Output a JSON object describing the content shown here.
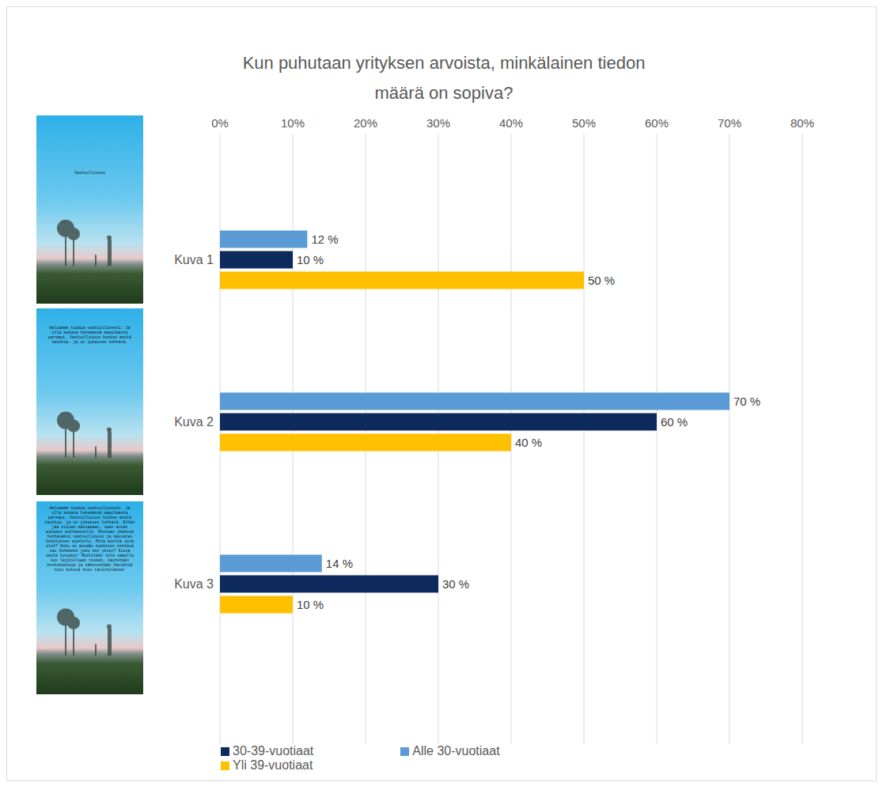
{
  "chart_data": {
    "type": "bar",
    "orientation": "horizontal",
    "title": "Kun puhutaan yrityksen arvoista, minkälainen tiedon määrä on sopiva?",
    "categories": [
      "Kuva 1",
      "Kuva 2",
      "Kuva 3"
    ],
    "series": [
      {
        "name": "Alle 30-vuotiaat",
        "color": "#5b9bd5",
        "values": [
          12,
          70,
          14
        ],
        "value_labels": [
          "12 %",
          "70 %",
          "14 %"
        ]
      },
      {
        "name": "30-39-vuotiaat",
        "color": "#0e2a5c",
        "values": [
          10,
          60,
          30
        ],
        "value_labels": [
          "10 %",
          "60 %",
          "30 %"
        ]
      },
      {
        "name": "Yli 39-vuotiaat",
        "color": "#ffc000",
        "values": [
          50,
          40,
          10
        ],
        "value_labels": [
          "50 %",
          "40 %",
          "10 %"
        ]
      }
    ],
    "xlim": [
      0,
      80
    ],
    "xticks": [
      {
        "value": 0,
        "label": "0%"
      },
      {
        "value": 10,
        "label": "10%"
      },
      {
        "value": 20,
        "label": "20%"
      },
      {
        "value": 30,
        "label": "30%"
      },
      {
        "value": 40,
        "label": "40%"
      },
      {
        "value": 50,
        "label": "50%"
      },
      {
        "value": 60,
        "label": "60%"
      },
      {
        "value": 70,
        "label": "70%"
      },
      {
        "value": 80,
        "label": "80%"
      }
    ],
    "grid": true,
    "data_labels": true,
    "legend": "bottom",
    "image_texts": [
      "Vastuullisuus",
      "Haluamme toimia vastuullisesti. Ja olla mukana tekemässä maailmasta parempi. Vastuullisuus koskee meitä kaikkia. ja on jokaisen tehtävä.",
      "Haluamme toimia vastuullisesti. Ja olla mukana tekemässä maailmasta parempi. Vastuullisuus koskee meitä kaikkia. ja on jokaisen tehtävä. Ethän jää kiinan maksamaan, vaan annat aikaasi auttamiselle. Otetaan yhdessä tehtäväksi vastuullisuus ja kasvatan kehityksen ajattelu. Mitä mieltä sinä olet? Onko se meidän kaikkien tehtävä vai tehkmekö joko sen yksin? Siinä vasta kysymys! Mietitään sitä samalla kun lajitellaan roskat, käytetään kestokasseja ja vähennetään hävikkiä niin kotona kuin ravintolassa!"
    ]
  }
}
